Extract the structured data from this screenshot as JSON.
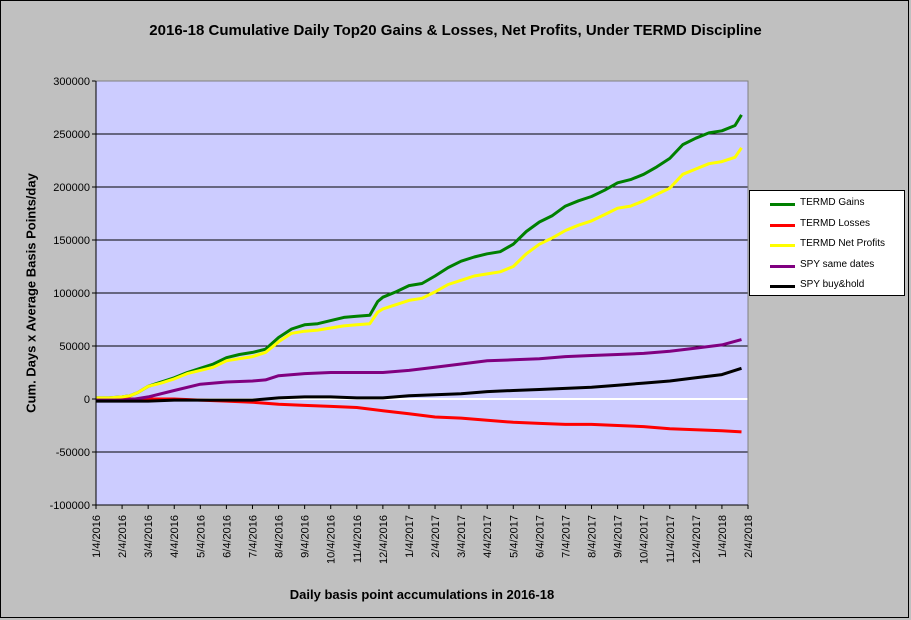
{
  "chart_data": {
    "type": "line",
    "title": "2016-18 Cumulative Daily Top20 Gains & Losses, Net Profits, Under TERMD Discipline",
    "xlabel": "Daily basis point accumulations in 2016-18",
    "ylabel": "Cum. Days x Average Basis Points/day",
    "ylim": [
      -100000,
      300000
    ],
    "y_ticks": [
      "-100000",
      "-50000",
      "0",
      "50000",
      "100000",
      "150000",
      "200000",
      "250000",
      "300000"
    ],
    "y_tick_values": [
      -100000,
      -50000,
      0,
      50000,
      100000,
      150000,
      200000,
      250000,
      300000
    ],
    "x_tick_labels": [
      "1/4/2016",
      "2/4/2016",
      "3/4/2016",
      "4/4/2016",
      "5/4/2016",
      "6/4/2016",
      "7/4/2016",
      "8/4/2016",
      "9/4/2016",
      "10/4/2016",
      "11/4/2016",
      "12/4/2016",
      "1/4/2017",
      "2/4/2017",
      "3/4/2017",
      "4/4/2017",
      "5/4/2017",
      "6/4/2017",
      "7/4/2017",
      "8/4/2017",
      "9/4/2017",
      "10/4/2017",
      "11/4/2017",
      "12/4/2017",
      "1/4/2018",
      "2/4/2018"
    ],
    "xlim": [
      0,
      25
    ],
    "grid": true,
    "legend_position": "right",
    "plot_background": "#ccccff",
    "series": [
      {
        "name": "TERMD Gains",
        "color": "#008000",
        "x": [
          0,
          0.5,
          1,
          1.3,
          1.6,
          2,
          2.5,
          3,
          3.5,
          4,
          4.5,
          5,
          5.5,
          6,
          6.5,
          7,
          7.5,
          8,
          8.5,
          9,
          9.5,
          10,
          10.5,
          10.8,
          11,
          11.5,
          12,
          12.5,
          13,
          13.5,
          14,
          14.5,
          15,
          15.5,
          16,
          16.5,
          17,
          17.5,
          18,
          18.5,
          19,
          19.5,
          20,
          20.5,
          21,
          21.5,
          22,
          22.5,
          23,
          23.5,
          24,
          24.5,
          24.75
        ],
        "y": [
          1000,
          1000,
          2000,
          3000,
          6000,
          12000,
          16000,
          20000,
          25000,
          29000,
          33000,
          39000,
          42000,
          44000,
          47000,
          58000,
          66000,
          70000,
          71000,
          74000,
          77000,
          78000,
          79000,
          92000,
          96000,
          101000,
          107000,
          109000,
          116000,
          124000,
          130000,
          134000,
          137000,
          139000,
          146000,
          158000,
          167000,
          173000,
          182000,
          187000,
          191000,
          197000,
          204000,
          207000,
          212000,
          219000,
          227000,
          240000,
          246000,
          251000,
          253000,
          258000,
          268000
        ]
      },
      {
        "name": "TERMD Losses",
        "color": "#ff0000",
        "x": [
          0,
          3,
          4,
          5,
          6,
          7,
          8,
          9,
          10,
          11,
          12,
          13,
          14,
          15,
          16,
          17,
          18,
          19,
          20,
          21,
          22,
          23,
          24,
          24.75
        ],
        "y": [
          0,
          0,
          -1000,
          -2000,
          -3000,
          -5000,
          -6000,
          -7000,
          -8000,
          -11000,
          -14000,
          -17000,
          -18000,
          -20000,
          -22000,
          -23000,
          -24000,
          -24000,
          -25000,
          -26000,
          -28000,
          -29000,
          -30000,
          -31000
        ]
      },
      {
        "name": "TERMD Net Profits",
        "color": "#ffff00",
        "x": [
          0,
          0.5,
          1,
          1.3,
          1.6,
          2,
          2.5,
          3,
          3.5,
          4,
          4.5,
          5,
          5.5,
          6,
          6.5,
          7,
          7.5,
          8,
          8.5,
          9,
          9.5,
          10,
          10.5,
          10.8,
          11,
          11.5,
          12,
          12.5,
          13,
          13.5,
          14,
          14.5,
          15,
          15.5,
          16,
          16.5,
          17,
          17.5,
          18,
          18.5,
          19,
          19.5,
          20,
          20.5,
          21,
          21.5,
          22,
          22.5,
          23,
          23.5,
          24,
          24.5,
          24.75
        ],
        "y": [
          1000,
          1000,
          2000,
          3000,
          6000,
          12000,
          15000,
          19000,
          24000,
          27000,
          30000,
          36000,
          38000,
          40000,
          44000,
          54000,
          62000,
          64000,
          65000,
          67000,
          69000,
          70000,
          71000,
          82000,
          85000,
          89000,
          93000,
          95000,
          101000,
          108000,
          112000,
          116000,
          118000,
          120000,
          125000,
          137000,
          146000,
          152000,
          159000,
          164000,
          168000,
          174000,
          180000,
          182000,
          187000,
          193000,
          199000,
          212000,
          217000,
          222000,
          224000,
          228000,
          237000
        ]
      },
      {
        "name": "SPY same dates",
        "color": "#800080",
        "x": [
          0,
          1,
          1.5,
          2,
          3,
          4,
          5,
          6,
          6.5,
          7,
          8,
          9,
          10,
          11,
          12,
          13,
          14,
          15,
          16,
          17,
          18,
          19,
          20,
          21,
          22,
          23,
          24,
          24.75
        ],
        "y": [
          -1000,
          -1000,
          0,
          2000,
          8000,
          14000,
          16000,
          17000,
          18000,
          22000,
          24000,
          25000,
          25000,
          25000,
          27000,
          30000,
          33000,
          36000,
          37000,
          38000,
          40000,
          41000,
          42000,
          43000,
          45000,
          48000,
          51000,
          56000
        ]
      },
      {
        "name": "SPY buy&hold",
        "color": "#000000",
        "x": [
          0,
          1,
          2,
          3,
          4,
          5,
          6,
          7,
          8,
          9,
          10,
          11,
          12,
          13,
          14,
          15,
          16,
          17,
          18,
          19,
          20,
          21,
          22,
          23,
          24,
          24.75
        ],
        "y": [
          -2000,
          -2000,
          -2000,
          -1000,
          -1000,
          -1000,
          -1000,
          1000,
          2000,
          2000,
          1000,
          1000,
          3000,
          4000,
          5000,
          7000,
          8000,
          9000,
          10000,
          11000,
          13000,
          15000,
          17000,
          20000,
          23000,
          29000
        ]
      }
    ]
  }
}
